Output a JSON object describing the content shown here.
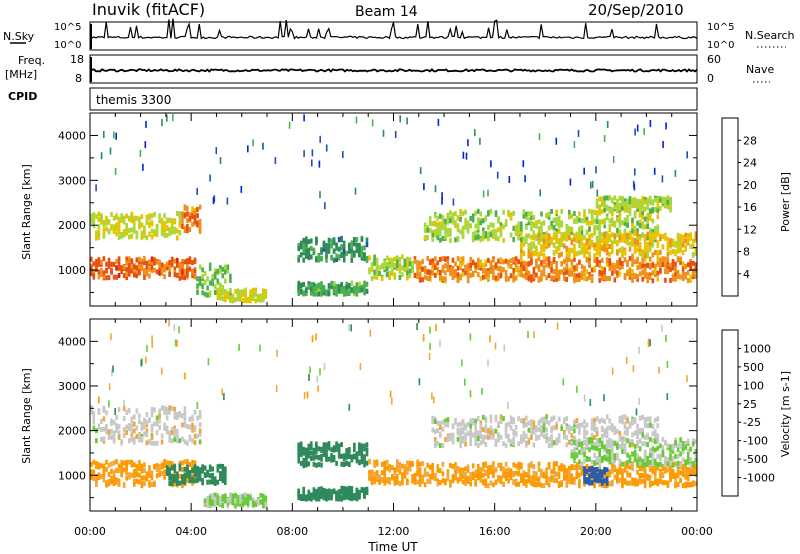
{
  "header": {
    "station": "Inuvik (fitACF)",
    "beam": "Beam 14",
    "date": "20/Sep/2010"
  },
  "strips": {
    "nsky": {
      "label": "N.Sky",
      "ticks": [
        "10^5",
        "10^0"
      ],
      "right_ticks": [
        "10^5",
        "10^0"
      ],
      "right_label": "N.Search"
    },
    "freq": {
      "label_line1": "Freq.",
      "label_line2": "[MHz]",
      "ticks": [
        "18",
        "8"
      ],
      "right_ticks": [
        "60",
        "0"
      ],
      "right_label": "Nave"
    },
    "cpid": {
      "label": "CPID",
      "value": "themis 3300"
    }
  },
  "colors": {
    "power": [
      "#0022dd",
      "#1f4fb0",
      "#2e8a5a",
      "#4caf50",
      "#a8d83c",
      "#e8c400",
      "#f0901a",
      "#e85010",
      "#e81a1a"
    ],
    "velocity": [
      "#e81a1a",
      "#ff5500",
      "#ff9900",
      "#f0a838",
      "#c8c8c8",
      "#66cc33",
      "#2e8a5a",
      "#2a5ea8",
      "#1a3cc0"
    ]
  },
  "chart_data": [
    {
      "type": "heatmap",
      "name": "power",
      "ylabel": "Slant Range [km]",
      "colorbar_label": "Power [dB]",
      "colorbar_ticks": [
        "28",
        "24",
        "20",
        "16",
        "12",
        "8",
        "4"
      ],
      "colorbar_range": [
        0,
        32
      ],
      "ylim": [
        200,
        4500
      ],
      "yticks": [
        "4000",
        "3000",
        "2000",
        "1000"
      ],
      "xlim_hours": [
        0,
        24
      ],
      "features": [
        {
          "t": [
            0.0,
            4.2
          ],
          "r": [
            800,
            1250
          ],
          "v": 26
        },
        {
          "t": [
            0.0,
            3.6
          ],
          "r": [
            1700,
            2250
          ],
          "v": 18
        },
        {
          "t": [
            3.6,
            4.4
          ],
          "r": [
            1850,
            2400
          ],
          "v": 24
        },
        {
          "t": [
            4.2,
            5.6
          ],
          "r": [
            400,
            1100
          ],
          "v": 14
        },
        {
          "t": [
            5.0,
            7.0
          ],
          "r": [
            300,
            550
          ],
          "v": 18
        },
        {
          "t": [
            8.2,
            11.0
          ],
          "r": [
            450,
            700
          ],
          "v": 12
        },
        {
          "t": [
            8.2,
            11.0
          ],
          "r": [
            1200,
            1700
          ],
          "v": 10
        },
        {
          "t": [
            11.0,
            12.8
          ],
          "r": [
            800,
            1300
          ],
          "v": 16
        },
        {
          "t": [
            12.8,
            24.0
          ],
          "r": [
            750,
            1250
          ],
          "v": 24
        },
        {
          "t": [
            13.2,
            22.5
          ],
          "r": [
            1650,
            2300
          ],
          "v": 16
        },
        {
          "t": [
            17.0,
            24.0
          ],
          "r": [
            1300,
            1800
          ],
          "v": 20
        },
        {
          "t": [
            20.0,
            23.0
          ],
          "r": [
            2300,
            2600
          ],
          "v": 16
        }
      ]
    },
    {
      "type": "heatmap",
      "name": "velocity",
      "ylabel": "Slant Range [km]",
      "colorbar_label": "Velocity [m s-1]",
      "colorbar_ticks": [
        "1000",
        "500",
        "100",
        "25",
        "-25",
        "-100",
        "-500",
        "-1000"
      ],
      "ylim": [
        200,
        4500
      ],
      "yticks": [
        "4000",
        "3000",
        "2000",
        "1000"
      ],
      "xlim_hours": [
        0,
        24
      ],
      "xticks": [
        "00:00",
        "04:00",
        "08:00",
        "12:00",
        "16:00",
        "20:00",
        "00:00"
      ],
      "xlabel": "Time UT",
      "features": [
        {
          "t": [
            0.0,
            4.2
          ],
          "r": [
            750,
            1300
          ],
          "v": -110
        },
        {
          "t": [
            0.0,
            4.4
          ],
          "r": [
            1700,
            2500
          ],
          "v": 0
        },
        {
          "t": [
            3.0,
            5.4
          ],
          "r": [
            800,
            1200
          ],
          "v": 200
        },
        {
          "t": [
            4.5,
            7.0
          ],
          "r": [
            300,
            550
          ],
          "v": 30
        },
        {
          "t": [
            8.2,
            11.0
          ],
          "r": [
            450,
            700
          ],
          "v": 200
        },
        {
          "t": [
            8.2,
            11.0
          ],
          "r": [
            1200,
            1700
          ],
          "v": 200
        },
        {
          "t": [
            11.0,
            13.0
          ],
          "r": [
            800,
            1300
          ],
          "v": -110
        },
        {
          "t": [
            13.0,
            24.0
          ],
          "r": [
            750,
            1250
          ],
          "v": -110
        },
        {
          "t": [
            13.5,
            22.5
          ],
          "r": [
            1650,
            2300
          ],
          "v": 0
        },
        {
          "t": [
            19.0,
            24.0
          ],
          "r": [
            1200,
            1800
          ],
          "v": 30
        },
        {
          "t": [
            19.5,
            20.5
          ],
          "r": [
            800,
            1150
          ],
          "v": 600
        }
      ]
    }
  ]
}
